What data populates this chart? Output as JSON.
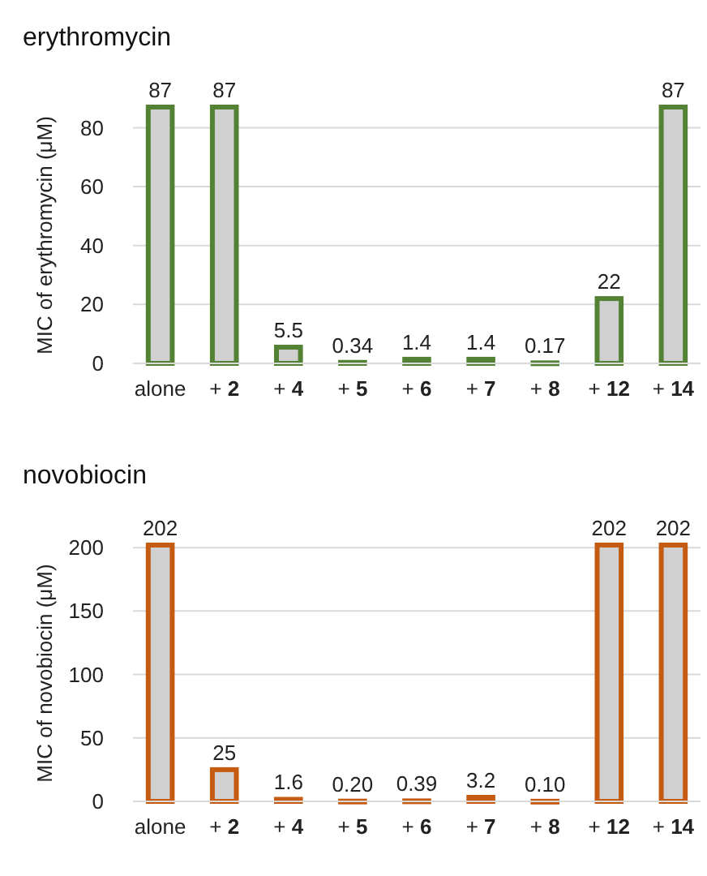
{
  "chart_data": [
    {
      "type": "bar",
      "title": "erythromycin",
      "ylabel": "MIC of erythromycin (μM)",
      "categories": [
        "alone",
        "+ 2",
        "+ 4",
        "+ 5",
        "+ 6",
        "+ 7",
        "+ 8",
        "+ 12",
        "+ 14"
      ],
      "values": [
        87,
        87,
        5.5,
        0.34,
        1.4,
        1.4,
        0.17,
        22,
        87
      ],
      "value_labels": [
        "87",
        "87",
        "5.5",
        "0.34",
        "1.4",
        "1.4",
        "0.17",
        "22",
        "87"
      ],
      "color": "#548235",
      "ylim": [
        0,
        87
      ],
      "yticks": [
        0,
        20,
        40,
        60,
        80
      ],
      "grid": "y"
    },
    {
      "type": "bar",
      "title": "novobiocin",
      "ylabel": "MIC of novobiocin (μM)",
      "categories": [
        "alone",
        "+ 2",
        "+ 4",
        "+ 5",
        "+ 6",
        "+ 7",
        "+ 8",
        "+ 12",
        "+ 14"
      ],
      "values": [
        202,
        25,
        1.6,
        0.2,
        0.39,
        3.2,
        0.1,
        202,
        202
      ],
      "value_labels": [
        "202",
        "25",
        "1.6",
        "0.20",
        "0.39",
        "3.2",
        "0.10",
        "202",
        "202"
      ],
      "color": "#c55a11",
      "ylim": [
        0,
        202
      ],
      "yticks": [
        0,
        50,
        100,
        150,
        200
      ],
      "grid": "y"
    }
  ]
}
